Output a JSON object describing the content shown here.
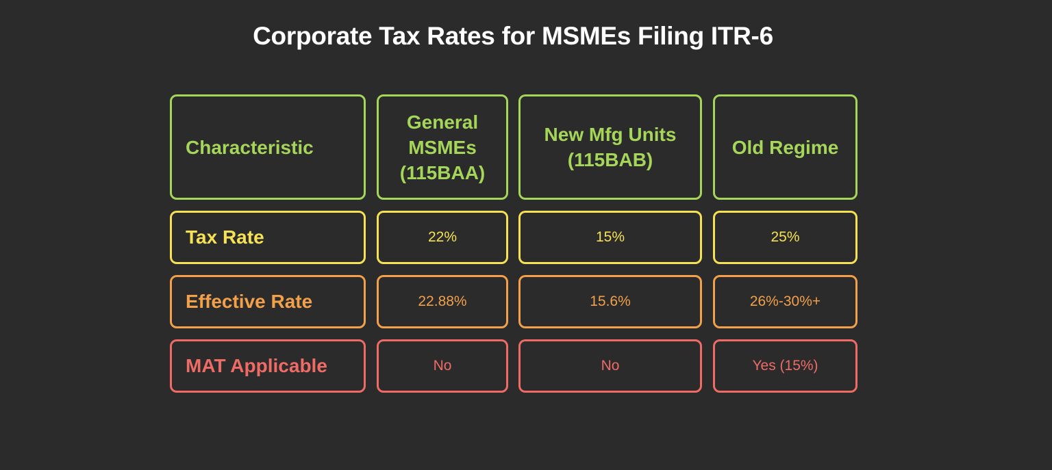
{
  "title": "Corporate Tax Rates for MSMEs Filing ITR-6",
  "header": [
    "Characteristic",
    "General\nMSMEs\n(115BAA)",
    "New Mfg Units\n(115BAB)",
    "Old Regime"
  ],
  "rows": [
    {
      "label": "Tax Rate",
      "values": [
        "22%",
        "15%",
        "25%"
      ]
    },
    {
      "label": "Effective Rate",
      "values": [
        "22.88%",
        "15.6%",
        "26%-30%+"
      ]
    },
    {
      "label": "MAT Applicable",
      "values": [
        "No",
        "No",
        "Yes (15%)"
      ]
    }
  ],
  "colors": {
    "background": "#2b2b2b",
    "header": "#a5d65a",
    "row_tax_rate": "#f6e154",
    "row_effective_rate": "#f2a04a",
    "row_mat_applicable": "#ef6b66"
  }
}
